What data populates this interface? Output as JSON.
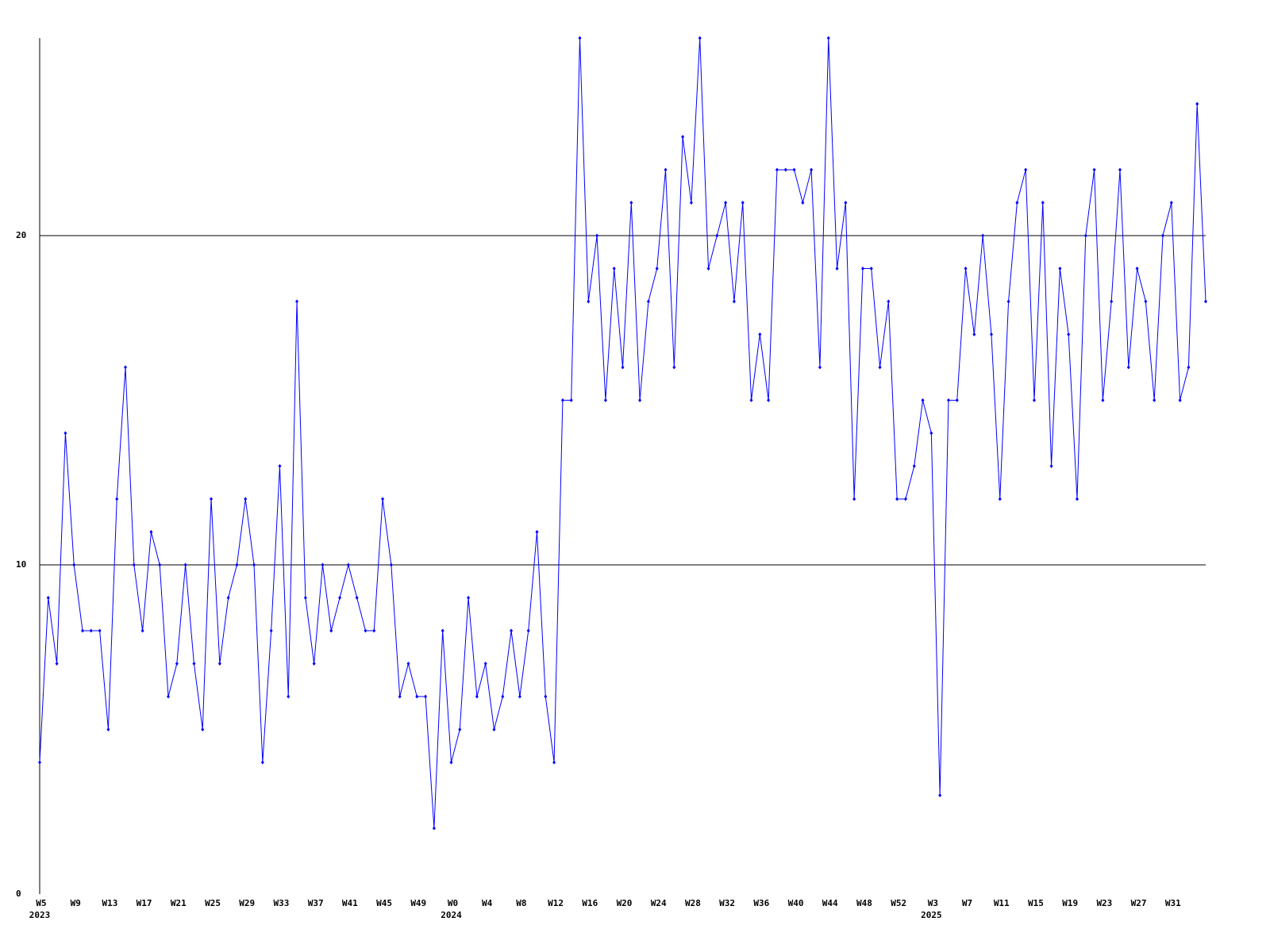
{
  "chart_data": {
    "type": "line",
    "categories": [
      "W5",
      null,
      null,
      null,
      "W9",
      null,
      null,
      null,
      "W13",
      null,
      null,
      null,
      "W17",
      null,
      null,
      null,
      "W21",
      null,
      null,
      null,
      "W25",
      null,
      null,
      null,
      "W29",
      null,
      null,
      null,
      "W33",
      null,
      null,
      null,
      "W37",
      null,
      null,
      null,
      "W41",
      null,
      null,
      null,
      "W45",
      null,
      null,
      null,
      "W49",
      null,
      null,
      null,
      "W0",
      null,
      null,
      null,
      "W4",
      null,
      null,
      null,
      "W8",
      null,
      null,
      null,
      "W12",
      null,
      null,
      null,
      "W16",
      null,
      null,
      null,
      "W20",
      null,
      null,
      null,
      "W24",
      null,
      null,
      null,
      "W28",
      null,
      null,
      null,
      "W32",
      null,
      null,
      null,
      "W36",
      null,
      null,
      null,
      "W40",
      null,
      null,
      null,
      "W44",
      null,
      null,
      null,
      "W48",
      null,
      null,
      null,
      "W52",
      null,
      null,
      null,
      "W3",
      null,
      null,
      null,
      "W7",
      null,
      null,
      null,
      "W11",
      null,
      null,
      null,
      "W15",
      null,
      null,
      null,
      "W19",
      null,
      null,
      null,
      "W23",
      null,
      null,
      null,
      "W27",
      null,
      null,
      null,
      "W31",
      null,
      null,
      null,
      null
    ],
    "years": [
      "2023",
      null,
      null,
      null,
      null,
      null,
      null,
      null,
      null,
      null,
      null,
      null,
      null,
      null,
      null,
      null,
      null,
      null,
      null,
      null,
      null,
      null,
      null,
      null,
      null,
      null,
      null,
      null,
      null,
      null,
      null,
      null,
      null,
      null,
      null,
      null,
      null,
      null,
      null,
      null,
      null,
      null,
      null,
      null,
      null,
      null,
      null,
      null,
      "2024",
      null,
      null,
      null,
      null,
      null,
      null,
      null,
      null,
      null,
      null,
      null,
      null,
      null,
      null,
      null,
      null,
      null,
      null,
      null,
      null,
      null,
      null,
      null,
      null,
      null,
      null,
      null,
      null,
      null,
      null,
      null,
      null,
      null,
      null,
      null,
      null,
      null,
      null,
      null,
      null,
      null,
      null,
      null,
      null,
      null,
      null,
      null,
      null,
      null,
      null,
      null,
      null,
      null,
      null,
      null,
      "2025",
      null,
      null,
      null,
      null,
      null,
      null,
      null,
      null,
      null,
      null,
      null,
      null,
      null,
      null,
      null,
      null,
      null,
      null,
      null,
      null,
      null,
      null,
      null,
      null,
      null,
      null,
      null,
      null,
      null,
      null,
      null
    ],
    "series": [
      {
        "color": "#0000ff",
        "values": [
          4,
          9,
          7,
          14,
          10,
          8,
          8,
          8,
          5,
          12,
          16,
          10,
          8,
          11,
          10,
          6,
          7,
          10,
          7,
          5,
          12,
          7,
          9,
          10,
          12,
          10,
          4,
          8,
          13,
          6,
          18,
          9,
          7,
          10,
          8,
          9,
          10,
          9,
          8,
          8,
          12,
          10,
          6,
          7,
          6,
          6,
          2,
          8,
          4,
          5,
          9,
          6,
          7,
          5,
          6,
          8,
          6,
          8,
          11,
          6,
          4,
          15,
          15,
          26,
          18,
          20,
          15,
          19,
          16,
          21,
          15,
          18,
          19,
          22,
          16,
          23,
          21,
          26,
          19,
          20,
          21,
          18,
          21,
          15,
          17,
          15,
          22,
          22,
          22,
          21,
          22,
          16,
          26,
          19,
          21,
          12,
          19,
          19,
          16,
          18,
          12,
          12,
          13,
          15,
          14,
          3,
          15,
          15,
          19,
          17,
          20,
          17,
          12,
          18,
          21,
          22,
          15,
          21,
          13,
          19,
          17,
          12,
          20,
          22,
          15,
          18,
          22,
          16,
          19,
          18,
          15,
          20,
          21,
          15,
          16,
          24,
          18
        ]
      }
    ],
    "ylim": [
      0,
      26
    ],
    "yticks": [
      0,
      10,
      20
    ],
    "grid": true
  }
}
